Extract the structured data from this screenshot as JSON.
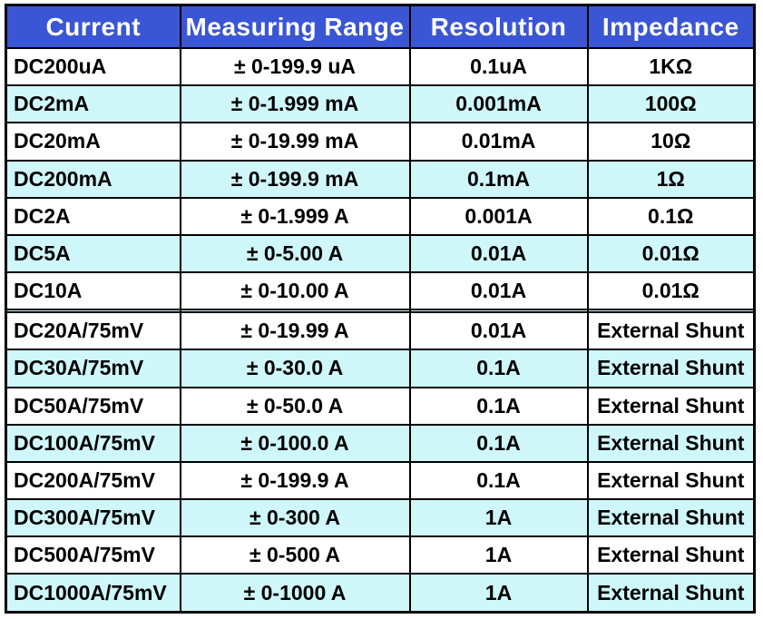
{
  "colors": {
    "header_bg": "#3a56d4",
    "header_text": "#ffffff",
    "stripe_bg": "#cff7f9",
    "row_bg": "#ffffff",
    "grid_border": "#000000",
    "body_text": "#000000"
  },
  "chart_data": {
    "type": "table",
    "title": "",
    "columns": [
      "Current",
      "Measuring Range",
      "Resolution",
      "Impedance"
    ],
    "rows": [
      [
        "DC200uA",
        "± 0-199.9 uA",
        "0.1uA",
        "1KΩ"
      ],
      [
        "DC2mA",
        "± 0-1.999 mA",
        "0.001mA",
        "100Ω"
      ],
      [
        "DC20mA",
        "± 0-19.99 mA",
        "0.01mA",
        "10Ω"
      ],
      [
        "DC200mA",
        "± 0-199.9 mA",
        "0.1mA",
        "1Ω"
      ],
      [
        "DC2A",
        "± 0-1.999 A",
        "0.001A",
        "0.1Ω"
      ],
      [
        "DC5A",
        "± 0-5.00 A",
        "0.01A",
        "0.01Ω"
      ],
      [
        "DC10A",
        "± 0-10.00 A",
        "0.01A",
        "0.01Ω"
      ],
      [
        "",
        "",
        "",
        ""
      ],
      [
        "DC20A/75mV",
        "± 0-19.99 A",
        "0.01A",
        "External Shunt"
      ],
      [
        "DC30A/75mV",
        "± 0-30.0 A",
        "0.1A",
        "External Shunt"
      ],
      [
        "DC50A/75mV",
        "± 0-50.0 A",
        "0.1A",
        "External Shunt"
      ],
      [
        "DC100A/75mV",
        "± 0-100.0 A",
        "0.1A",
        "External Shunt"
      ],
      [
        "DC200A/75mV",
        "± 0-199.9 A",
        "0.1A",
        "External Shunt"
      ],
      [
        "DC300A/75mV",
        "± 0-300 A",
        "1A",
        "External Shunt"
      ],
      [
        "DC500A/75mV",
        "± 0-500 A",
        "1A",
        "External Shunt"
      ],
      [
        "DC1000A/75mV",
        "± 0-1000 A",
        "1A",
        "External Shunt"
      ]
    ]
  }
}
